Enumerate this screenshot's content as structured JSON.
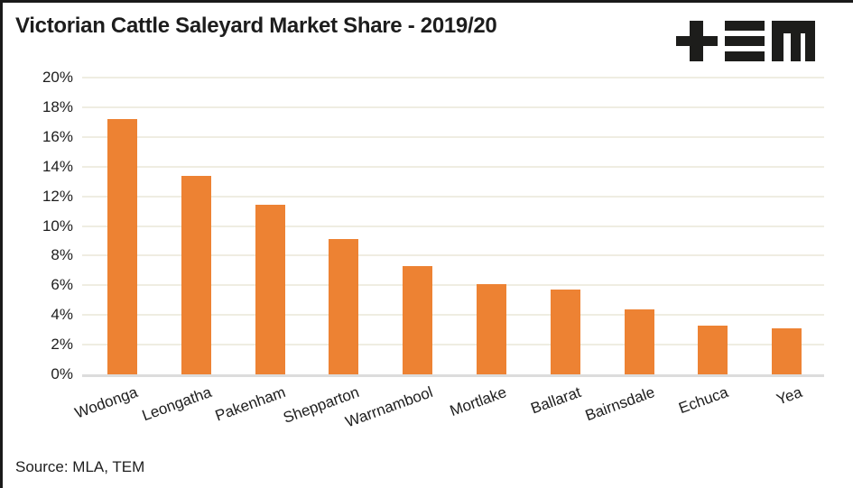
{
  "header": {
    "title": "Victorian Cattle Saleyard Market Share - 2019/20"
  },
  "footer": {
    "source": "Source: MLA, TEM"
  },
  "colors": {
    "bar": "#ED8233",
    "text": "#1D1D1D",
    "gridline": "#EFEDE2",
    "axis_line": "#DCDCDC",
    "border": "#1A1A1A",
    "logo": "#1D1D1B",
    "background": "#FFFFFF"
  },
  "chart_data": {
    "type": "bar",
    "title": "Victorian Cattle Saleyard Market Share - 2019/20",
    "categories": [
      "Wodonga",
      "Leongatha",
      "Pakenham",
      "Shepparton",
      "Warrnambool",
      "Mortlake",
      "Ballarat",
      "Bairnsdale",
      "Echuca",
      "Yea"
    ],
    "values": [
      17.2,
      13.4,
      11.4,
      9.1,
      7.3,
      6.1,
      5.7,
      4.4,
      3.3,
      3.1
    ],
    "xlabel": "",
    "ylabel": "",
    "ylim": [
      0,
      20
    ],
    "ytick_values": [
      0,
      2,
      4,
      6,
      8,
      10,
      12,
      14,
      16,
      18,
      20
    ],
    "ytick_labels": [
      "0%",
      "2%",
      "4%",
      "6%",
      "8%",
      "10%",
      "12%",
      "14%",
      "16%",
      "18%",
      "20%"
    ],
    "grid": true,
    "legend": false,
    "bar_color": "#ED8233"
  }
}
